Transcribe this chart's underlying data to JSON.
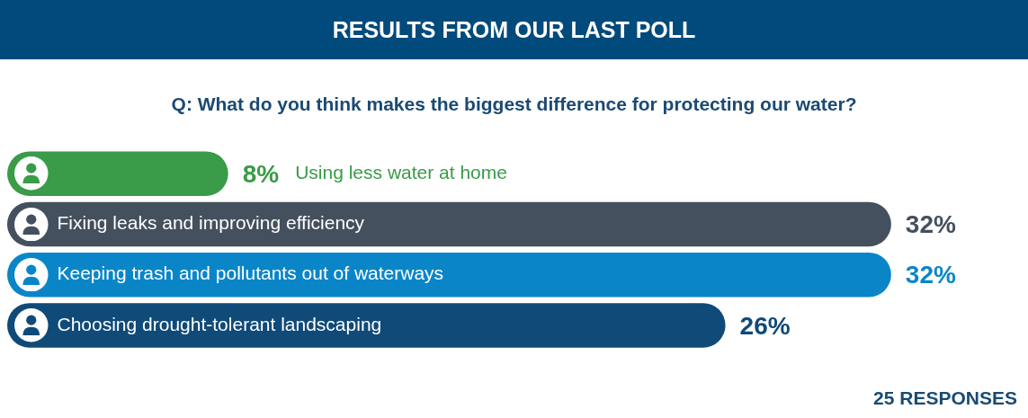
{
  "chart_data": {
    "type": "bar",
    "orientation": "horizontal",
    "title": "RESULTS FROM OUR LAST POLL",
    "subtitle": "Q: What do you think makes the biggest difference for protecting our water?",
    "categories": [
      "Using less water at home",
      "Fixing leaks and improving efficiency",
      "Keeping trash and pollutants out of waterways",
      "Choosing drought-tolerant landscaping"
    ],
    "values": [
      8,
      32,
      32,
      26
    ],
    "colors": [
      "#3a9b48",
      "#44505e",
      "#0a86c8",
      "#0f4a78"
    ],
    "value_labels": [
      "8%",
      "32%",
      "32%",
      "26%"
    ],
    "annotations": [
      "25 RESPONSES"
    ]
  }
}
